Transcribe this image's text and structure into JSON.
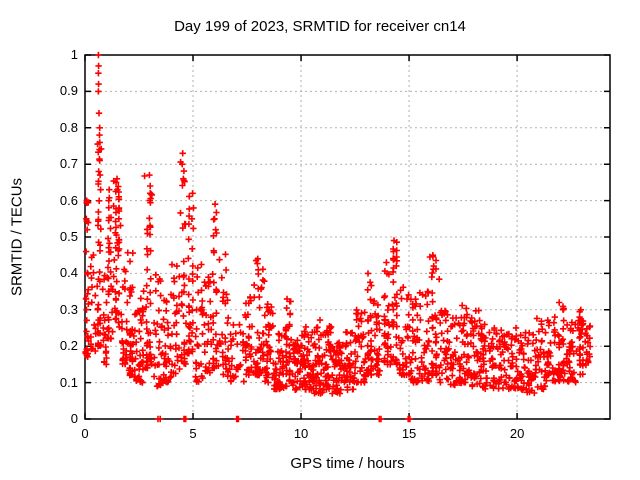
{
  "chart_data": {
    "type": "scatter",
    "title": "Day 199 of 2023, SRMTID for receiver cn14",
    "xlabel": "GPS time / hours",
    "ylabel": "SRMTID / TECUs",
    "xlim": [
      0,
      24.3
    ],
    "ylim": [
      0,
      1
    ],
    "grid": true,
    "legend": "none",
    "marker": "plus",
    "marker_color": "#ff0000",
    "grid_color": "#b0b0b0",
    "axis_color": "#000000",
    "xticks": [
      {
        "v": 0,
        "label": "0"
      },
      {
        "v": 5,
        "label": "5"
      },
      {
        "v": 10,
        "label": "10"
      },
      {
        "v": 15,
        "label": "15"
      },
      {
        "v": 20,
        "label": "20"
      }
    ],
    "yticks": [
      {
        "v": 0.0,
        "label": "0"
      },
      {
        "v": 0.1,
        "label": "0.1"
      },
      {
        "v": 0.2,
        "label": "0.2"
      },
      {
        "v": 0.3,
        "label": "0.3"
      },
      {
        "v": 0.4,
        "label": "0.4"
      },
      {
        "v": 0.5,
        "label": "0.5"
      },
      {
        "v": 0.6,
        "label": "0.6"
      },
      {
        "v": 0.7,
        "label": "0.7"
      },
      {
        "v": 0.8,
        "label": "0.8"
      },
      {
        "v": 0.9,
        "label": "0.9"
      },
      {
        "v": 1.0,
        "label": "1"
      }
    ],
    "clusters": {
      "fields": [
        "x_start_h",
        "x_end_h",
        "y_min_tecu",
        "y_max_tecu",
        "n_points",
        "bottom_bias",
        "vertical_streak"
      ],
      "rows": [
        [
          0.02,
          0.18,
          0.17,
          0.61,
          26,
          1.6,
          1
        ],
        [
          0.2,
          0.5,
          0.18,
          0.47,
          16,
          1.5,
          0
        ],
        [
          0.55,
          0.75,
          0.2,
          1.0,
          40,
          2.2,
          1
        ],
        [
          0.78,
          1.0,
          0.15,
          0.42,
          18,
          1.5,
          0
        ],
        [
          1.0,
          1.3,
          0.22,
          0.63,
          32,
          1.3,
          1
        ],
        [
          1.32,
          1.68,
          0.25,
          0.66,
          48,
          1.1,
          1
        ],
        [
          1.7,
          2.0,
          0.15,
          0.48,
          28,
          1.5,
          0
        ],
        [
          2.0,
          2.3,
          0.12,
          0.47,
          34,
          1.6,
          1
        ],
        [
          2.3,
          2.72,
          0.1,
          0.36,
          40,
          1.6,
          0
        ],
        [
          2.75,
          3.15,
          0.14,
          0.67,
          46,
          1.9,
          1
        ],
        [
          3.18,
          3.6,
          0.09,
          0.42,
          30,
          1.7,
          0
        ],
        [
          3.6,
          4.0,
          0.1,
          0.35,
          30,
          1.5,
          0
        ],
        [
          4.0,
          4.38,
          0.12,
          0.45,
          26,
          1.6,
          0
        ],
        [
          4.4,
          4.68,
          0.15,
          0.74,
          30,
          2.2,
          1
        ],
        [
          4.7,
          5.1,
          0.18,
          0.62,
          34,
          1.8,
          1
        ],
        [
          5.1,
          5.5,
          0.1,
          0.45,
          30,
          1.6,
          0
        ],
        [
          5.5,
          5.85,
          0.12,
          0.42,
          26,
          1.5,
          0
        ],
        [
          5.85,
          6.18,
          0.14,
          0.59,
          30,
          1.8,
          1
        ],
        [
          6.2,
          6.6,
          0.12,
          0.46,
          28,
          1.7,
          0
        ],
        [
          6.6,
          6.98,
          0.1,
          0.3,
          20,
          1.4,
          0
        ],
        [
          7.0,
          7.38,
          0.1,
          0.26,
          14,
          1.4,
          0
        ],
        [
          7.4,
          7.8,
          0.12,
          0.37,
          30,
          1.6,
          0
        ],
        [
          7.8,
          8.3,
          0.12,
          0.44,
          44,
          1.8,
          0
        ],
        [
          8.3,
          8.72,
          0.1,
          0.32,
          36,
          1.6,
          0
        ],
        [
          8.72,
          9.2,
          0.08,
          0.26,
          40,
          1.5,
          0
        ],
        [
          9.2,
          9.6,
          0.09,
          0.33,
          34,
          1.7,
          1
        ],
        [
          9.6,
          10.0,
          0.08,
          0.22,
          40,
          1.4,
          0
        ],
        [
          10.0,
          10.5,
          0.08,
          0.26,
          46,
          1.5,
          0
        ],
        [
          10.5,
          11.0,
          0.07,
          0.3,
          46,
          1.7,
          0
        ],
        [
          11.0,
          11.4,
          0.08,
          0.27,
          40,
          1.5,
          0
        ],
        [
          11.4,
          12.0,
          0.07,
          0.21,
          52,
          1.3,
          0
        ],
        [
          12.0,
          12.5,
          0.08,
          0.24,
          44,
          1.4,
          0
        ],
        [
          12.5,
          13.0,
          0.1,
          0.3,
          38,
          1.5,
          0
        ],
        [
          13.0,
          13.35,
          0.12,
          0.4,
          30,
          1.7,
          1
        ],
        [
          13.35,
          13.75,
          0.12,
          0.33,
          26,
          1.5,
          0
        ],
        [
          13.75,
          14.15,
          0.15,
          0.43,
          30,
          1.6,
          1
        ],
        [
          14.15,
          14.55,
          0.15,
          0.49,
          36,
          1.6,
          1
        ],
        [
          14.55,
          15.0,
          0.12,
          0.38,
          30,
          1.6,
          0
        ],
        [
          15.0,
          15.45,
          0.1,
          0.33,
          34,
          1.5,
          0
        ],
        [
          15.45,
          15.95,
          0.1,
          0.35,
          36,
          1.6,
          0
        ],
        [
          15.95,
          16.4,
          0.12,
          0.45,
          36,
          1.8,
          1
        ],
        [
          16.4,
          16.9,
          0.1,
          0.3,
          34,
          1.5,
          0
        ],
        [
          16.9,
          17.4,
          0.09,
          0.28,
          36,
          1.5,
          0
        ],
        [
          17.4,
          17.8,
          0.1,
          0.32,
          32,
          1.6,
          0
        ],
        [
          17.8,
          18.3,
          0.09,
          0.3,
          36,
          1.5,
          0
        ],
        [
          18.3,
          18.8,
          0.08,
          0.26,
          36,
          1.4,
          0
        ],
        [
          18.8,
          19.3,
          0.08,
          0.25,
          36,
          1.4,
          0
        ],
        [
          19.3,
          19.8,
          0.08,
          0.24,
          36,
          1.4,
          0
        ],
        [
          19.8,
          20.3,
          0.08,
          0.26,
          36,
          1.4,
          0
        ],
        [
          20.3,
          20.8,
          0.07,
          0.24,
          34,
          1.4,
          0
        ],
        [
          20.8,
          21.3,
          0.08,
          0.28,
          34,
          1.5,
          0
        ],
        [
          21.3,
          21.8,
          0.1,
          0.3,
          34,
          1.5,
          0
        ],
        [
          21.8,
          22.3,
          0.1,
          0.32,
          36,
          1.6,
          1
        ],
        [
          22.3,
          22.8,
          0.1,
          0.27,
          34,
          1.4,
          0
        ],
        [
          22.8,
          23.15,
          0.12,
          0.3,
          32,
          1.5,
          1
        ],
        [
          23.15,
          23.38,
          0.13,
          0.27,
          18,
          1.3,
          0
        ]
      ]
    },
    "peak_points": [
      [
        0.62,
        1.0
      ],
      [
        0.63,
        0.97
      ],
      [
        0.62,
        0.95
      ],
      [
        0.63,
        0.92
      ],
      [
        0.62,
        0.9
      ],
      [
        0.65,
        0.84
      ],
      [
        0.68,
        0.8
      ],
      [
        0.67,
        0.78
      ],
      [
        0.68,
        0.76
      ],
      [
        0.67,
        0.74
      ],
      [
        0.68,
        0.71
      ],
      [
        0.7,
        0.67
      ],
      [
        0.72,
        0.63
      ],
      [
        0.08,
        0.6
      ],
      [
        0.06,
        0.55
      ],
      [
        0.1,
        0.52
      ],
      [
        1.12,
        0.63
      ],
      [
        1.1,
        0.6
      ],
      [
        1.48,
        0.66
      ],
      [
        1.5,
        0.63
      ],
      [
        2.98,
        0.67
      ],
      [
        3.02,
        0.64
      ],
      [
        3.0,
        0.6
      ],
      [
        4.52,
        0.73
      ],
      [
        4.5,
        0.7
      ],
      [
        4.55,
        0.66
      ],
      [
        4.98,
        0.62
      ],
      [
        5.02,
        0.58
      ],
      [
        4.95,
        0.55
      ],
      [
        6.02,
        0.59
      ],
      [
        6.0,
        0.55
      ],
      [
        6.05,
        0.52
      ],
      [
        8.0,
        0.44
      ],
      [
        8.02,
        0.41
      ],
      [
        9.35,
        0.33
      ],
      [
        13.1,
        0.4
      ],
      [
        13.95,
        0.43
      ],
      [
        13.98,
        0.4
      ],
      [
        14.3,
        0.49
      ],
      [
        14.28,
        0.46
      ],
      [
        14.32,
        0.44
      ],
      [
        16.1,
        0.45
      ],
      [
        16.14,
        0.42
      ],
      [
        16.05,
        0.39
      ],
      [
        21.95,
        0.32
      ],
      [
        22.95,
        0.3
      ]
    ],
    "zero_value_markers_x": [
      3.38,
      3.48,
      4.58,
      4.62,
      4.66,
      7.02,
      7.06,
      7.1,
      13.62,
      13.7,
      14.96,
      15.0,
      15.04
    ]
  }
}
